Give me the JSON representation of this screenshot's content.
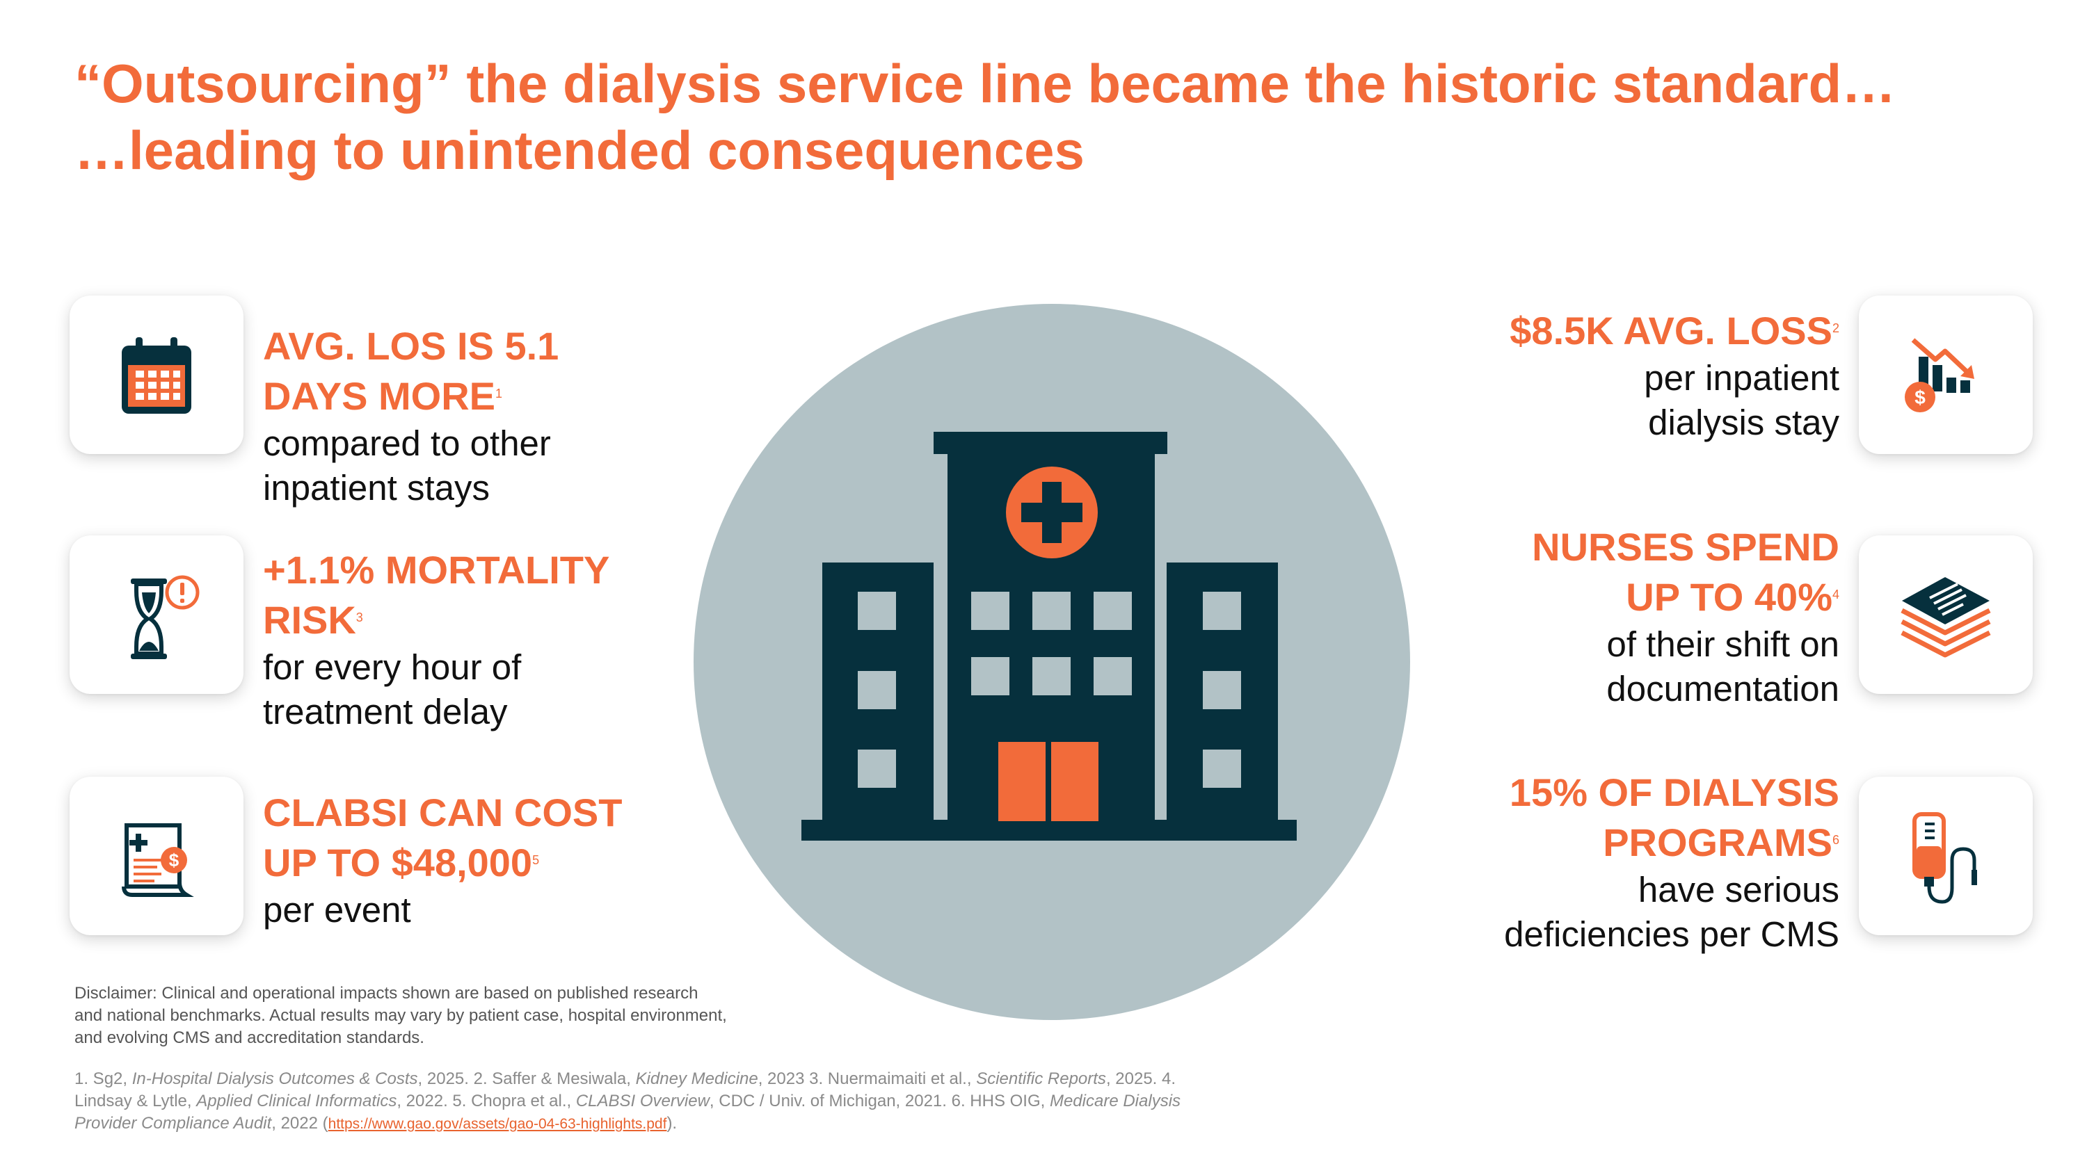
{
  "title": {
    "line1": "“Outsourcing” the dialysis service line became the historic standard…",
    "line2": "…leading to unintended consequences"
  },
  "left_stats": [
    {
      "head1": "AVG. LOS IS 5.1",
      "head2": "DAYS MORE",
      "sup": "1",
      "body1": "compared to other",
      "body2": "inpatient stays",
      "icon": "calendar-icon"
    },
    {
      "head1": "+1.1% MORTALITY",
      "head2": "RISK",
      "sup": "3",
      "body1": "for every hour of",
      "body2": "treatment delay",
      "icon": "hourglass-alert-icon"
    },
    {
      "head1": "CLABSI CAN COST",
      "head2": "UP TO $48,000",
      "sup": "5",
      "body1": "per event",
      "icon": "medical-bill-icon"
    }
  ],
  "right_stats": [
    {
      "head1": "$8.5K AVG. LOSS",
      "sup": "2",
      "body1": "per inpatient",
      "body2": "dialysis stay",
      "icon": "financial-loss-icon"
    },
    {
      "head1": "NURSES SPEND",
      "head2": "UP TO 40%",
      "sup": "4",
      "body1": "of their shift on",
      "body2": "documentation",
      "icon": "document-stack-icon"
    },
    {
      "head1": "15% OF DIALYSIS",
      "head2": "PROGRAMS",
      "sup": "6",
      "body1": "have serious",
      "body2": "deficiencies per CMS",
      "icon": "iv-bag-icon"
    }
  ],
  "disclaimer": "Disclaimer: Clinical and operational impacts shown are based on published research and national benchmarks. Actual results may vary by patient case, hospital environment, and evolving CMS and accreditation standards.",
  "references": {
    "r1_pre": "1. Sg2, ",
    "r1_i": "In-Hospital Dialysis Outcomes & Costs",
    "r1_post": ", 2025.   2. Saffer & Mesiwala, ",
    "r2_i": "Kidney Medicine",
    "r2_post": ", 2023   3. Nuermaimaiti et al., ",
    "r3_i": "Scientific Reports",
    "r3_post": ", 2025.    4. Lindsay & Lytle, ",
    "r4_i": "Applied Clinical Informatics",
    "r4_post": ", 2022.  5. Chopra et al., ",
    "r5_i": "CLABSI Overview",
    "r5_post": ", CDC / Univ. of Michigan, 2021.   6. HHS OIG, ",
    "r6_i": "Medicare Dialysis Provider Compliance Audit",
    "r6_post": ", 2022 (",
    "link": "https://www.gao.gov/assets/gao-04-63-highlights.pdf",
    "end": ")."
  },
  "center_icon": "hospital-building-icon",
  "colors": {
    "accent": "#f26b3a",
    "navy": "#06303d",
    "circle": "#b2c2c6",
    "window": "#b2c2c6"
  }
}
